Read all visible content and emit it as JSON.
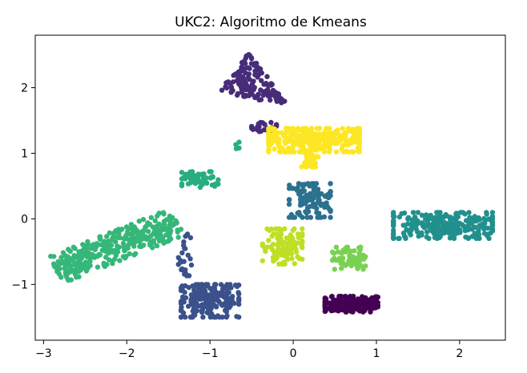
{
  "chart_data": {
    "type": "scatter",
    "title": "UKC2: Algoritmo de Kmeans",
    "xlabel": "",
    "ylabel": "",
    "xlim": [
      -3.1,
      2.55
    ],
    "ylim": [
      -1.85,
      2.8
    ],
    "xticks": [
      -3,
      -2,
      -1,
      0,
      1,
      2
    ],
    "yticks": [
      -1,
      0,
      1,
      2
    ],
    "xtick_labels": [
      "−3",
      "−2",
      "−1",
      "0",
      "1",
      "2"
    ],
    "ytick_labels": [
      "−1",
      "0",
      "1",
      "2"
    ],
    "grid": false,
    "legend": "none",
    "clusters": [
      {
        "cluster": 0,
        "color": "#440154",
        "shape": "ellipse",
        "center": [
          0.7,
          -1.3
        ],
        "spread": [
          0.32,
          0.12
        ],
        "points": 170
      },
      {
        "cluster": 1,
        "color": "#472c7a",
        "shape": "triangle",
        "vertices": [
          [
            -0.55,
            2.55
          ],
          [
            -0.9,
            1.9
          ],
          [
            -0.05,
            1.75
          ]
        ],
        "points": 140
      },
      {
        "cluster": 1,
        "color": "#472c7a",
        "shape": "ellipse",
        "center": [
          -0.35,
          1.4
        ],
        "spread": [
          0.15,
          0.07
        ],
        "points": 22
      },
      {
        "cluster": 2,
        "color": "#3b518b",
        "shape": "ellipse",
        "center": [
          -1.0,
          -1.25
        ],
        "spread": [
          0.35,
          0.25
        ],
        "points": 210
      },
      {
        "cluster": 2,
        "color": "#3b518b",
        "shape": "ellipse",
        "center": [
          -1.3,
          -0.55
        ],
        "spread": [
          0.08,
          0.32
        ],
        "points": 25
      },
      {
        "cluster": 3,
        "color": "#2c718e",
        "shape": "ellipse",
        "center": [
          0.2,
          0.28
        ],
        "spread": [
          0.25,
          0.26
        ],
        "points": 110
      },
      {
        "cluster": 4,
        "color": "#21908d",
        "shape": "ellipse",
        "center": [
          1.8,
          -0.1
        ],
        "spread": [
          0.6,
          0.2
        ],
        "points": 260
      },
      {
        "cluster": 5,
        "color": "#27ad81",
        "shape": "ellipse",
        "center": [
          -1.12,
          0.6
        ],
        "spread": [
          0.22,
          0.12
        ],
        "points": 55
      },
      {
        "cluster": 5,
        "color": "#27ad81",
        "shape": "ellipse",
        "center": [
          -0.7,
          1.12
        ],
        "spread": [
          0.05,
          0.05
        ],
        "points": 4
      },
      {
        "cluster": 6,
        "color": "#35b779",
        "shape": "band",
        "from": [
          -2.85,
          -0.78
        ],
        "to": [
          -1.4,
          -0.05
        ],
        "width": 0.24,
        "points": 330
      },
      {
        "cluster": 7,
        "color": "#7ad151",
        "shape": "ellipse",
        "center": [
          0.67,
          -0.6
        ],
        "spread": [
          0.2,
          0.17
        ],
        "points": 65
      },
      {
        "cluster": 8,
        "color": "#bddf26",
        "shape": "ellipse",
        "center": [
          -0.13,
          -0.42
        ],
        "spread": [
          0.24,
          0.27
        ],
        "points": 110
      },
      {
        "cluster": 9,
        "color": "#fde725",
        "shape": "ellipse",
        "center": [
          0.25,
          1.2
        ],
        "spread": [
          0.55,
          0.18
        ],
        "points": 320
      },
      {
        "cluster": 9,
        "color": "#fde725",
        "shape": "ellipse",
        "center": [
          0.2,
          0.92
        ],
        "spread": [
          0.1,
          0.13
        ],
        "points": 35
      }
    ]
  }
}
